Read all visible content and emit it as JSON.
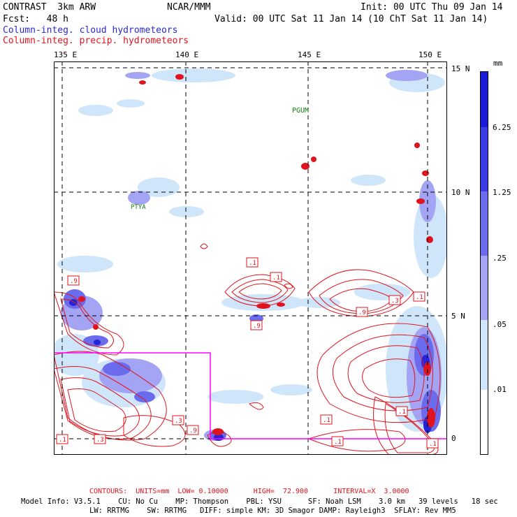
{
  "header": {
    "model": "CONTRAST  3km ARW",
    "org": "NCAR/MMM",
    "init": "Init: 00 UTC Thu 09 Jan 14",
    "fcst": "Fcst:   48 h",
    "valid": "Valid: 00 UTC Sat 11 Jan 14 (10 ChT Sat 11 Jan 14)",
    "legend_cloud": "Column-integ. cloud hydrometeors",
    "legend_precip": "Column-integ. precip. hydrometeors"
  },
  "map": {
    "lon_labels": [
      "135 E",
      "140 E",
      "145 E",
      "150 E"
    ],
    "lat_labels": [
      "15 N",
      "10 N",
      "5 N",
      "0"
    ],
    "places": [
      "PGUM",
      "PTYA"
    ],
    "contour_labels": [
      ".1",
      ".1",
      ".9",
      ".9",
      ".3",
      ".1",
      ".9",
      ".3",
      ".9",
      ".1",
      ".1",
      ".3",
      ".1",
      ".1",
      ".1"
    ],
    "colors": {
      "grid": "#000000",
      "contour": "#e0141e",
      "box": "#ff00ff",
      "place": "#157a15"
    }
  },
  "colorbar": {
    "unit": "mm",
    "labels": [
      "6.25",
      "1.25",
      ".25",
      ".05",
      ".01"
    ],
    "colors": [
      "#1a1ad8",
      "#3c3ce6",
      "#6b6bee",
      "#a4a4f4",
      "#cfe6fa",
      "#ffffff"
    ]
  },
  "footer": {
    "contours": "CONTOURS:  UNITS=mm  LOW= 0.10000      HIGH=  72.900      INTERVAL=X  3.0000",
    "line1": "Model Info: V3.5.1    CU: No Cu    MP: Thompson    PBL: YSU      SF: Noah LSM    3.0 km   39 levels   18 sec",
    "line2": "LW: RRTMG    SW: RRTMG   DIFF: simple KM: 3D Smagor DAMP: Rayleigh3  SFLAY: Rev MM5"
  }
}
